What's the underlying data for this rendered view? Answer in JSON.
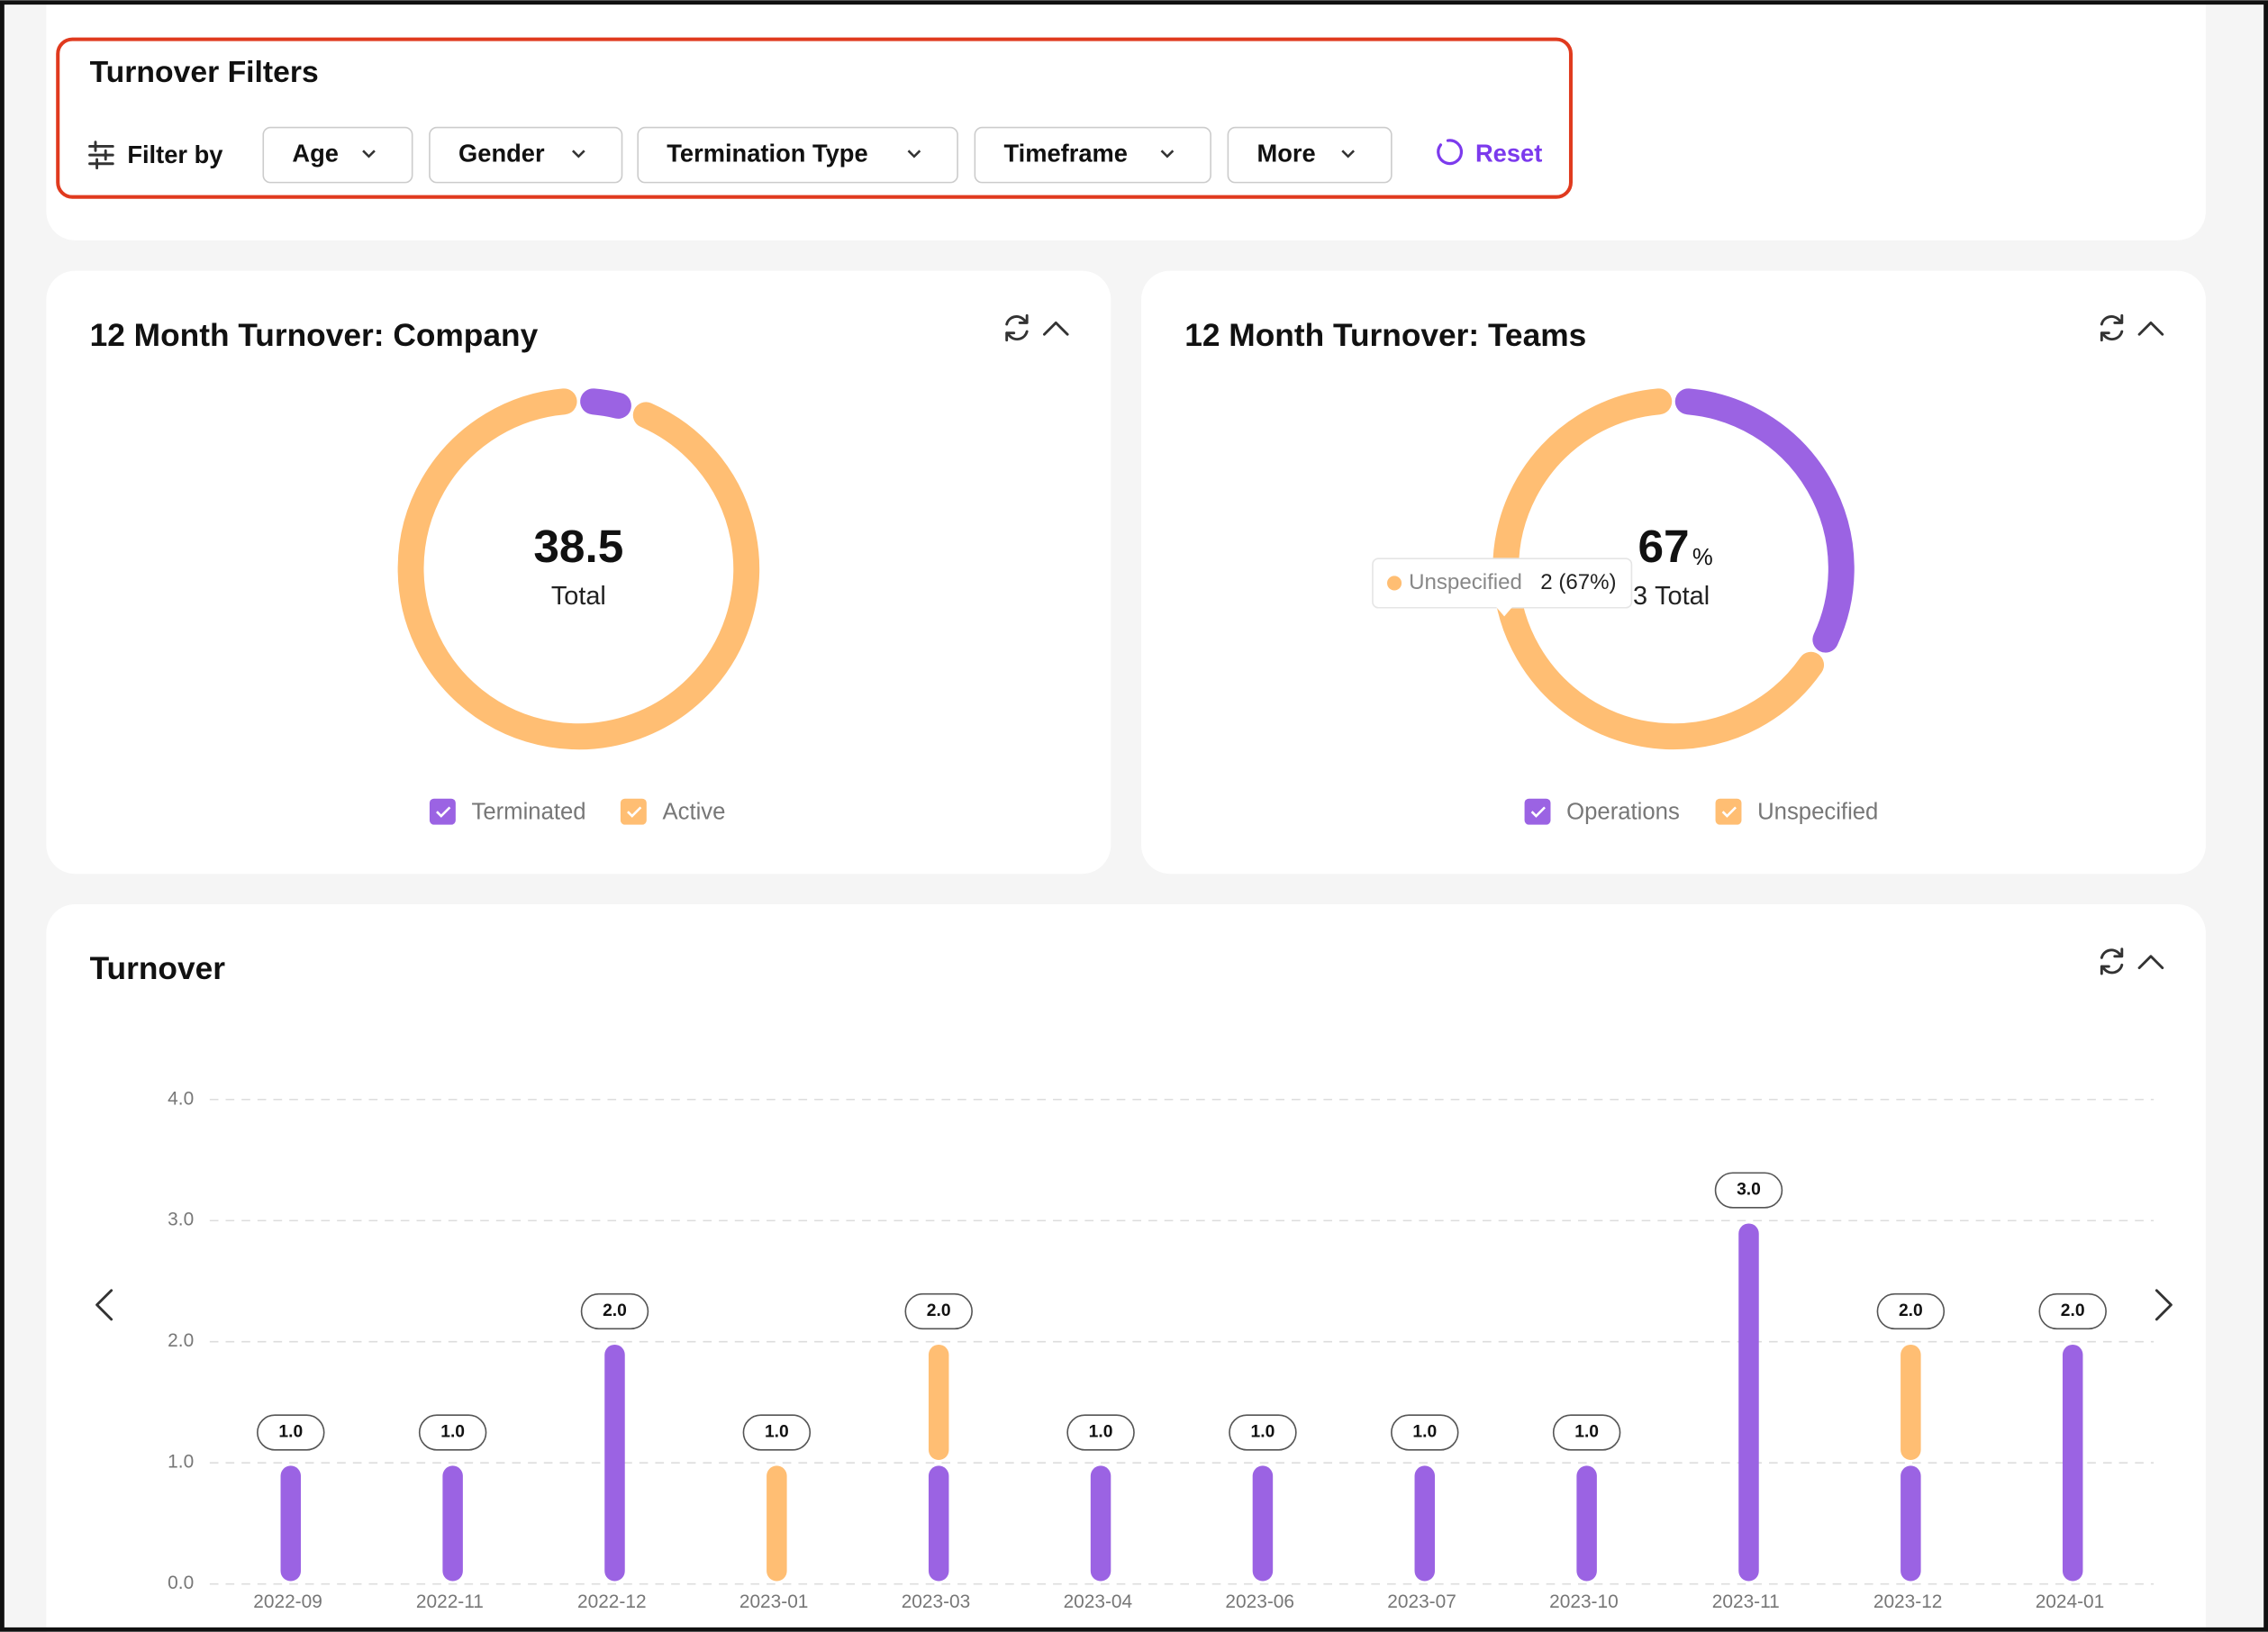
{
  "filters": {
    "title": "Turnover Filters",
    "filter_by": "Filter by",
    "options": [
      "Age",
      "Gender",
      "Termination Type",
      "Timeframe",
      "More"
    ],
    "reset": "Reset"
  },
  "chart_data": [
    {
      "type": "donut",
      "title": "12 Month Turnover: Company",
      "categories": [
        "Terminated",
        "Active"
      ],
      "values": [
        2,
        36.5
      ],
      "colors": [
        "#9b63e3",
        "#ffbe73"
      ],
      "total": 38.5,
      "total_label": "Total"
    },
    {
      "type": "donut",
      "title": "12 Month Turnover: Teams",
      "categories": [
        "Operations",
        "Unspecified"
      ],
      "values": [
        1,
        2
      ],
      "colors": [
        "#9b63e3",
        "#ffbe73"
      ],
      "center_value": 67,
      "center_unit": "%",
      "total": 3,
      "total_label": "Total",
      "tooltip": {
        "name": "Unspecified",
        "label": "2 (67%)"
      }
    },
    {
      "type": "stacked_bar",
      "title": "Turnover",
      "categories": [
        "2022-09",
        "2022-11",
        "2022-12",
        "2023-01",
        "2023-03",
        "2023-04",
        "2023-06",
        "2023-07",
        "2023-10",
        "2023-11",
        "2023-12",
        "2024-01"
      ],
      "series": [
        {
          "color": "#9b63e3",
          "values": [
            1,
            1,
            2,
            0,
            1,
            1,
            1,
            1,
            1,
            3,
            1,
            2
          ]
        },
        {
          "color": "#ffbe73",
          "values": [
            0,
            0,
            0,
            1,
            1,
            0,
            0,
            0,
            0,
            0,
            1,
            0
          ]
        }
      ],
      "totals": [
        1,
        1,
        2,
        1,
        2,
        1,
        1,
        1,
        1,
        3,
        2,
        2
      ],
      "total_labels": [
        "1.0",
        "1.0",
        "2.0",
        "1.0",
        "2.0",
        "1.0",
        "1.0",
        "1.0",
        "1.0",
        "3.0",
        "2.0",
        "2.0"
      ],
      "ylim": [
        0,
        4
      ],
      "yticks": [
        {
          "value": 0,
          "label": "0.0"
        },
        {
          "value": 1,
          "label": "1.0"
        },
        {
          "value": 2,
          "label": "2.0"
        },
        {
          "value": 3,
          "label": "3.0"
        },
        {
          "value": 4,
          "label": "4.0"
        }
      ],
      "grid": true
    }
  ]
}
